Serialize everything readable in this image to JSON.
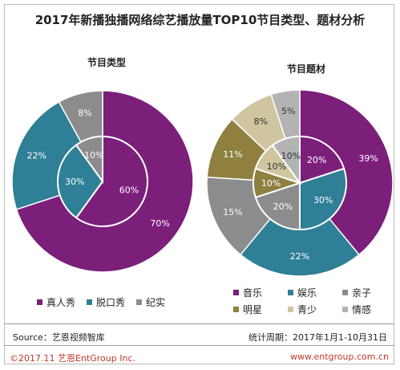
{
  "title": "2017年新播独播网络综艺播放量TOP10节目类型、题材分析",
  "source": "Source：艺恩视频智库",
  "period": "统计周期：2017年1月1-10月31日",
  "copyright": "©2017.11  艺恩EntGroup Inc.",
  "website": "www.entgroup.com.cn",
  "chart_data": [
    {
      "type": "pie",
      "title": "节目类型",
      "categories": [
        "真人秀",
        "脱口秀",
        "纪实"
      ],
      "colors": [
        "#7b1f7b",
        "#2f7f96",
        "#8c8c8c"
      ],
      "series": [
        {
          "ring": "outer",
          "values": [
            70,
            22,
            8
          ],
          "labels": [
            "70%",
            "22%",
            "8%"
          ]
        },
        {
          "ring": "inner",
          "values": [
            60,
            30,
            10
          ],
          "labels": [
            "60%",
            "30%",
            "10%"
          ]
        }
      ],
      "legend_position": "bottom"
    },
    {
      "type": "pie",
      "title": "节目题材",
      "categories": [
        "音乐",
        "娱乐",
        "亲子",
        "明星",
        "青少",
        "情感"
      ],
      "colors": [
        "#7b1f7b",
        "#2f7f96",
        "#8c8c8c",
        "#8f8040",
        "#cfc6a0",
        "#b3b3b3"
      ],
      "series": [
        {
          "ring": "outer",
          "values": [
            39,
            22,
            15,
            11,
            8,
            5
          ],
          "labels": [
            "39%",
            "22%",
            "15%",
            "11%",
            "8%",
            "5%"
          ]
        },
        {
          "ring": "inner",
          "values": [
            20,
            30,
            20,
            10,
            10,
            10
          ],
          "labels": [
            "20%",
            "30%",
            "20%",
            "10%",
            "10%",
            "10%"
          ]
        }
      ],
      "legend_position": "bottom"
    }
  ]
}
